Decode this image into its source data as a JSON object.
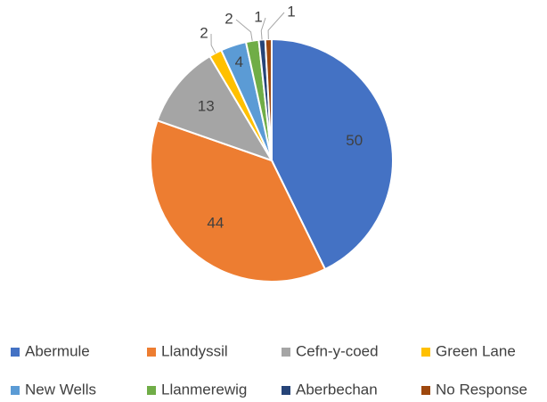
{
  "chart_data": {
    "type": "pie",
    "categories": [
      "Abermule",
      "Llandyssil",
      "Cefn-y-coed",
      "Green Lane",
      "New Wells",
      "Llanmerewig",
      "Aberbechan",
      "No Response"
    ],
    "values": [
      50,
      44,
      13,
      2,
      4,
      2,
      1,
      1
    ],
    "colors": [
      "#4472c4",
      "#ed7d31",
      "#a5a5a5",
      "#ffc000",
      "#5b9bd5",
      "#70ad47",
      "#264478",
      "#9e480e"
    ],
    "legend": "bottom"
  }
}
